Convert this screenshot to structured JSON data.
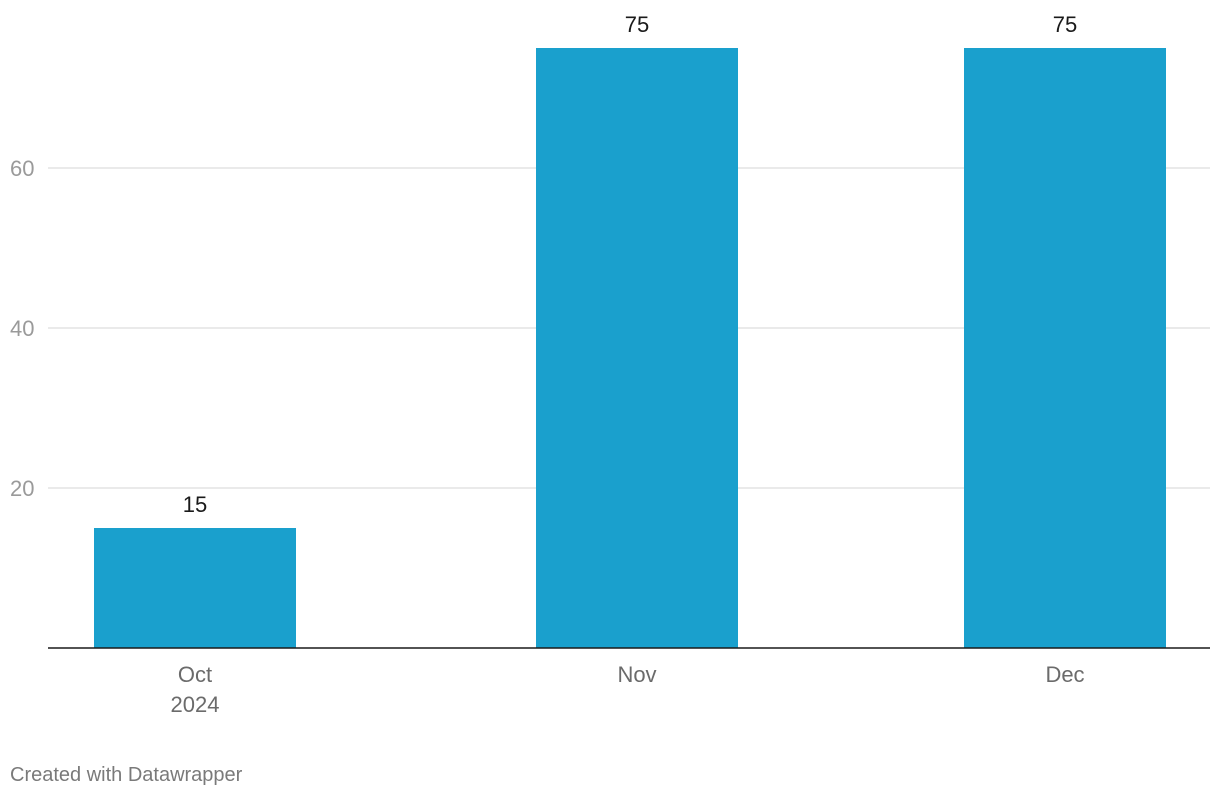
{
  "chart_data": {
    "type": "bar",
    "categories": [
      "Oct",
      "Nov",
      "Dec"
    ],
    "category_sublabels": [
      "2024",
      "",
      ""
    ],
    "values": [
      15,
      75,
      75
    ],
    "ylim": [
      0,
      75
    ],
    "yticks": [
      20,
      40,
      60
    ],
    "title": "",
    "xlabel": "",
    "ylabel": "",
    "grid": true,
    "data_labels": true,
    "bar_color": "#1aa0cd"
  },
  "footer": {
    "credit": "Created with Datawrapper"
  }
}
